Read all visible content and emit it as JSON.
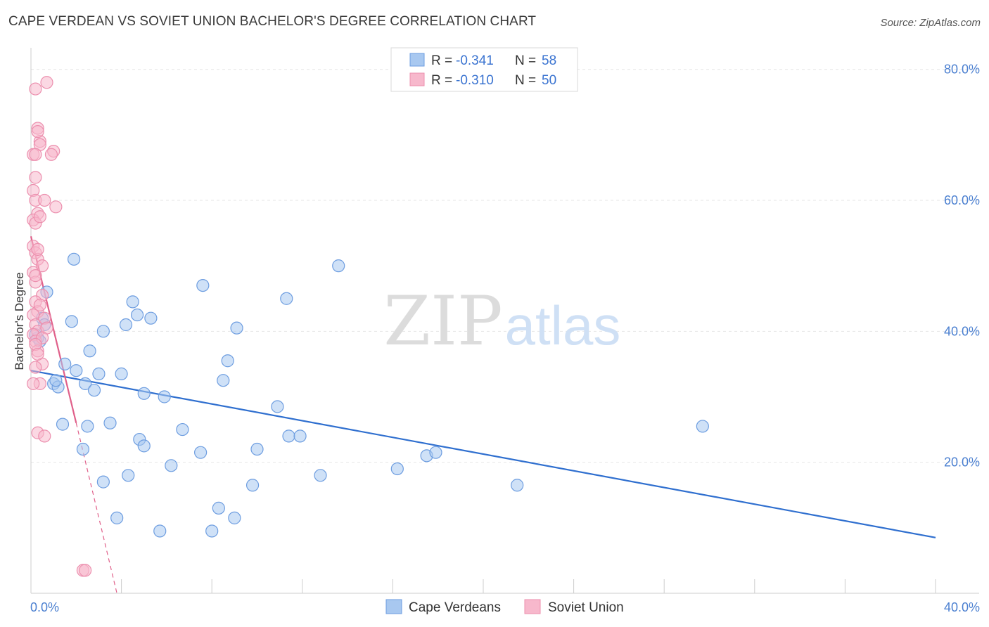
{
  "title": "CAPE VERDEAN VS SOVIET UNION BACHELOR'S DEGREE CORRELATION CHART",
  "source": "Source: ZipAtlas.com",
  "watermark": {
    "zip": "ZIP",
    "atlas": "atlas"
  },
  "chart_data": {
    "type": "scatter",
    "ylabel": "Bachelor's Degree",
    "xlim": [
      0,
      40
    ],
    "ylim": [
      0,
      82
    ],
    "x_tick_labels": [
      "0.0%",
      "40.0%"
    ],
    "y_ticks": [
      20,
      40,
      60,
      80
    ],
    "y_tick_labels": [
      "20.0%",
      "40.0%",
      "60.0%",
      "80.0%"
    ],
    "grid": true,
    "legend_position": "top-center",
    "legend": [
      {
        "name": "Cape Verdeans",
        "r_label": "R = ",
        "r_value": "-0.341",
        "n_label": "N = ",
        "n_value": "58",
        "color": "#a8c8f0",
        "stroke": "#6d9de0",
        "line": "#2f6fcf"
      },
      {
        "name": "Soviet Union",
        "r_label": "R = ",
        "r_value": "-0.310",
        "n_label": "N = ",
        "n_value": "50",
        "color": "#f7b8cc",
        "stroke": "#ec8fae",
        "line": "#e0608a"
      }
    ],
    "series": [
      {
        "name": "Cape Verdeans",
        "points": [
          [
            0.3,
            39.0
          ],
          [
            0.5,
            42.0
          ],
          [
            0.7,
            46.0
          ],
          [
            1.0,
            32.0
          ],
          [
            1.2,
            31.5
          ],
          [
            1.5,
            35.0
          ],
          [
            1.8,
            41.5
          ],
          [
            1.9,
            51.0
          ],
          [
            2.0,
            34.0
          ],
          [
            2.3,
            22.0
          ],
          [
            2.4,
            32.0
          ],
          [
            2.8,
            31.0
          ],
          [
            2.6,
            37.0
          ],
          [
            2.5,
            25.5
          ],
          [
            3.0,
            33.5
          ],
          [
            3.2,
            17.0
          ],
          [
            3.2,
            40.0
          ],
          [
            3.5,
            26.0
          ],
          [
            3.8,
            11.5
          ],
          [
            4.0,
            33.5
          ],
          [
            4.2,
            41.0
          ],
          [
            4.3,
            18.0
          ],
          [
            4.5,
            44.5
          ],
          [
            4.7,
            42.5
          ],
          [
            4.8,
            23.5
          ],
          [
            5.0,
            22.5
          ],
          [
            5.0,
            30.5
          ],
          [
            5.3,
            42.0
          ],
          [
            5.7,
            9.5
          ],
          [
            5.9,
            30.0
          ],
          [
            6.2,
            19.5
          ],
          [
            6.7,
            25.0
          ],
          [
            7.5,
            21.5
          ],
          [
            7.6,
            47.0
          ],
          [
            8.0,
            9.5
          ],
          [
            8.3,
            13.0
          ],
          [
            8.5,
            32.5
          ],
          [
            8.7,
            35.5
          ],
          [
            9.1,
            40.5
          ],
          [
            9.0,
            11.5
          ],
          [
            9.8,
            16.5
          ],
          [
            10.0,
            22.0
          ],
          [
            10.9,
            28.5
          ],
          [
            11.3,
            45.0
          ],
          [
            11.4,
            24.0
          ],
          [
            11.9,
            24.0
          ],
          [
            12.8,
            18.0
          ],
          [
            13.6,
            50.0
          ],
          [
            16.2,
            19.0
          ],
          [
            17.5,
            21.0
          ],
          [
            17.9,
            21.5
          ],
          [
            21.5,
            16.5
          ],
          [
            29.7,
            25.5
          ],
          [
            0.2,
            39.5
          ],
          [
            0.4,
            38.5
          ],
          [
            1.1,
            32.5
          ],
          [
            1.4,
            25.8
          ],
          [
            0.6,
            41.0
          ]
        ]
      },
      {
        "name": "Soviet Union",
        "points": [
          [
            0.2,
            77.0
          ],
          [
            0.3,
            71.0
          ],
          [
            0.4,
            69.0
          ],
          [
            0.1,
            67.0
          ],
          [
            0.2,
            63.5
          ],
          [
            0.1,
            61.5
          ],
          [
            0.2,
            60.0
          ],
          [
            0.3,
            58.0
          ],
          [
            0.1,
            57.0
          ],
          [
            0.2,
            56.5
          ],
          [
            0.1,
            53.0
          ],
          [
            0.2,
            52.0
          ],
          [
            0.3,
            51.0
          ],
          [
            0.1,
            49.0
          ],
          [
            0.2,
            47.5
          ],
          [
            0.5,
            45.5
          ],
          [
            0.2,
            44.5
          ],
          [
            0.3,
            43.0
          ],
          [
            0.1,
            42.5
          ],
          [
            0.2,
            41.0
          ],
          [
            0.3,
            40.0
          ],
          [
            0.1,
            39.5
          ],
          [
            0.2,
            38.5
          ],
          [
            0.3,
            37.0
          ],
          [
            0.5,
            35.0
          ],
          [
            0.2,
            34.5
          ],
          [
            0.4,
            32.0
          ],
          [
            0.3,
            24.5
          ],
          [
            0.6,
            24.0
          ],
          [
            0.7,
            78.0
          ],
          [
            1.0,
            67.5
          ],
          [
            0.6,
            60.0
          ],
          [
            1.1,
            59.0
          ],
          [
            0.3,
            70.5
          ],
          [
            0.4,
            68.5
          ],
          [
            0.2,
            67.0
          ],
          [
            0.9,
            67.0
          ],
          [
            0.4,
            57.5
          ],
          [
            0.3,
            52.5
          ],
          [
            0.5,
            50.0
          ],
          [
            0.2,
            48.5
          ],
          [
            0.4,
            44.0
          ],
          [
            0.6,
            42.0
          ],
          [
            0.7,
            40.5
          ],
          [
            0.5,
            39.0
          ],
          [
            0.2,
            38.0
          ],
          [
            0.3,
            36.5
          ],
          [
            0.1,
            32.0
          ],
          [
            2.3,
            3.5
          ],
          [
            2.4,
            3.5
          ]
        ]
      }
    ],
    "trend_lines": [
      {
        "series": "Cape Verdeans",
        "from": [
          0,
          34.0
        ],
        "to": [
          40,
          8.5
        ],
        "style": "solid"
      },
      {
        "series": "Soviet Union",
        "from": [
          0,
          54.5
        ],
        "to": [
          2.0,
          26.0
        ],
        "style": "solid"
      },
      {
        "series": "Soviet Union",
        "from": [
          2.0,
          26.0
        ],
        "to": [
          3.8,
          0
        ],
        "style": "dashed"
      }
    ]
  }
}
